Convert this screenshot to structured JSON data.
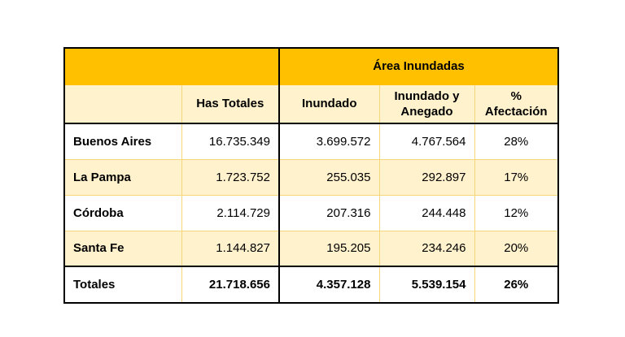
{
  "table": {
    "group_header": "Área Inundadas",
    "columns": [
      "",
      "Has Totales",
      "Inundado",
      "Inundado y Anegado",
      "% Afectación"
    ],
    "rows": [
      [
        "Buenos Aires",
        "16.735.349",
        "3.699.572",
        "4.767.564",
        "28%"
      ],
      [
        "La Pampa",
        "1.723.752",
        "255.035",
        "292.897",
        "17%"
      ],
      [
        "Córdoba",
        "2.114.729",
        "207.316",
        "244.448",
        "12%"
      ],
      [
        "Santa Fe",
        "1.144.827",
        "195.205",
        "234.246",
        "20%"
      ]
    ],
    "totals": [
      "Totales",
      "21.718.656",
      "4.357.128",
      "5.539.154",
      "26%"
    ]
  },
  "colors": {
    "header": "#FFC000",
    "band": "#FFF2CC",
    "border": "#000000"
  }
}
